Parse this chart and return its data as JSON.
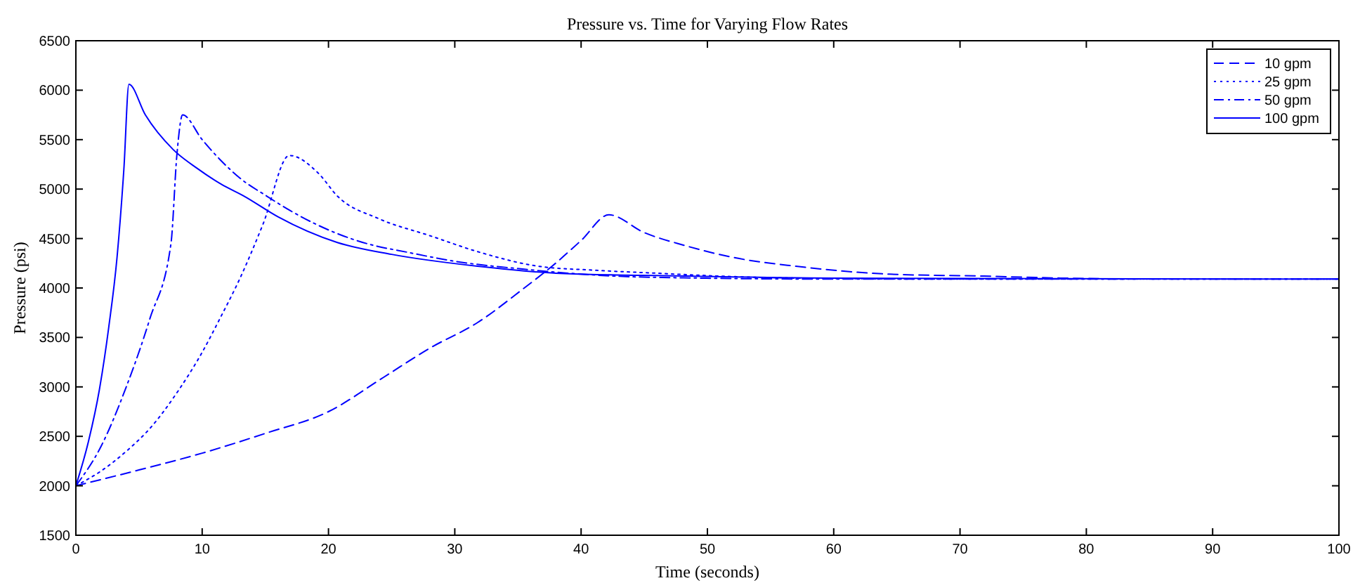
{
  "chart_data": {
    "type": "line",
    "title": "Pressure vs. Time for Varying Flow Rates",
    "xlabel": "Time (seconds)",
    "ylabel": "Pressure (psi)",
    "xlim": [
      0,
      100
    ],
    "xticks": [
      0,
      10,
      20,
      30,
      40,
      50,
      60,
      70,
      80,
      90,
      100
    ],
    "ylim": [
      1500,
      6500
    ],
    "yticks": [
      1500,
      2000,
      2500,
      3000,
      3500,
      4000,
      4500,
      5000,
      5500,
      6000,
      6500
    ],
    "grid": false,
    "legend": "top right",
    "series": [
      {
        "name": "10 gpm",
        "color": "#0000ff",
        "line_style": "dashed",
        "x": [
          0,
          5,
          10,
          15,
          20,
          24.4,
          28,
          31.8,
          35.5,
          37.7,
          40,
          42.2,
          45,
          48.2,
          52,
          57,
          64.4,
          71.9,
          78,
          83
        ],
        "values": [
          2000,
          2160,
          2330,
          2530,
          2750,
          3100,
          3390,
          3650,
          4000,
          4220,
          4480,
          4740,
          4560,
          4430,
          4310,
          4220,
          4140,
          4120,
          4100,
          4090
        ]
      },
      {
        "name": "25 gpm",
        "color": "#0000ff",
        "line_style": "dotted",
        "x": [
          0,
          2,
          4,
          6,
          8.1,
          10,
          11.4,
          13,
          14.8,
          16.9,
          19.2,
          20.7,
          24,
          28,
          32,
          36.6,
          41,
          45.9,
          51,
          57,
          70,
          100
        ],
        "values": [
          2000,
          2150,
          2350,
          2600,
          2960,
          3350,
          3690,
          4100,
          4640,
          5340,
          5160,
          4930,
          4700,
          4530,
          4360,
          4220,
          4180,
          4150,
          4120,
          4100,
          4090,
          4090
        ]
      },
      {
        "name": "50 gpm",
        "color": "#0000ff",
        "line_style": "dashdot",
        "x": [
          0,
          2,
          3.93,
          5.86,
          7.53,
          8,
          8.45,
          10,
          11.4,
          13,
          15.1,
          17,
          20.7,
          23,
          26.3,
          30,
          35.5,
          40,
          45,
          60,
          100
        ],
        "values": [
          2000,
          2400,
          2980,
          3690,
          4450,
          5350,
          5750,
          5500,
          5300,
          5110,
          4930,
          4780,
          4550,
          4450,
          4360,
          4270,
          4190,
          4140,
          4110,
          4090,
          4090
        ]
      },
      {
        "name": "100 gpm",
        "color": "#0000ff",
        "line_style": "solid",
        "x": [
          0,
          1,
          1.86,
          2.6,
          3.26,
          3.8,
          4.2,
          5.5,
          7.7,
          9.6,
          11.5,
          13.3,
          16,
          20.7,
          25,
          31.8,
          38,
          48.5,
          60,
          100
        ],
        "values": [
          2000,
          2450,
          2970,
          3600,
          4310,
          5200,
          6060,
          5750,
          5400,
          5210,
          5050,
          4930,
          4720,
          4460,
          4340,
          4220,
          4150,
          4120,
          4100,
          4090
        ]
      }
    ]
  }
}
